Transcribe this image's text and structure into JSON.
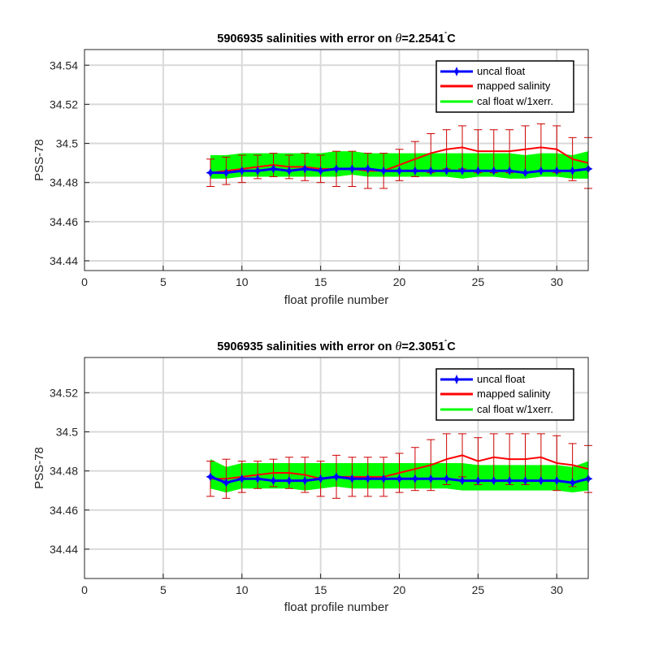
{
  "chart_data": [
    {
      "type": "line",
      "title": "5906935 salinities with error on θ=2.2541˚C",
      "title_parts": {
        "prefix": "5906935 salinities with error on ",
        "symbol": "θ",
        "value": "=2.2541",
        "degree": "˚",
        "unit": "C"
      },
      "xlabel": "float profile number",
      "ylabel": "PSS-78",
      "xlim": [
        0,
        32
      ],
      "ylim": [
        34.435,
        34.548
      ],
      "xticks": [
        0,
        5,
        10,
        15,
        20,
        25,
        30
      ],
      "xtick_labels": [
        "0",
        "5",
        "10",
        "15",
        "20",
        "25",
        "30"
      ],
      "yticks": [
        34.44,
        34.46,
        34.48,
        34.5,
        34.52,
        34.54
      ],
      "ytick_labels": [
        "34.44",
        "34.46",
        "34.48",
        "34.5",
        "34.52",
        "34.54"
      ],
      "grid": true,
      "legend_position": "top-right",
      "legend": [
        "uncal float",
        "mapped salinity",
        "cal float w/1xerr."
      ],
      "x": [
        8,
        9,
        10,
        11,
        12,
        13,
        14,
        15,
        16,
        17,
        18,
        19,
        20,
        21,
        22,
        23,
        24,
        25,
        26,
        27,
        28,
        29,
        30,
        31,
        32
      ],
      "series": [
        {
          "name": "uncal float",
          "color": "#0000ff",
          "values": [
            34.485,
            34.485,
            34.486,
            34.486,
            34.487,
            34.486,
            34.487,
            34.486,
            34.487,
            34.487,
            34.487,
            34.486,
            34.486,
            34.486,
            34.486,
            34.486,
            34.486,
            34.486,
            34.486,
            34.486,
            34.485,
            34.486,
            34.486,
            34.486,
            34.487
          ]
        },
        {
          "name": "mapped salinity",
          "color": "#ff0000",
          "values": [
            34.485,
            34.486,
            34.487,
            34.488,
            34.489,
            34.488,
            34.488,
            34.487,
            34.487,
            34.487,
            34.486,
            34.486,
            34.489,
            34.492,
            34.495,
            34.497,
            34.498,
            34.496,
            34.496,
            34.496,
            34.497,
            34.498,
            34.497,
            34.492,
            34.49
          ]
        },
        {
          "name": "mapped salinity error",
          "color": "#cc0000",
          "err": [
            0.007,
            0.007,
            0.007,
            0.006,
            0.006,
            0.006,
            0.007,
            0.007,
            0.009,
            0.009,
            0.009,
            0.009,
            0.008,
            0.009,
            0.01,
            0.01,
            0.011,
            0.011,
            0.011,
            0.011,
            0.012,
            0.012,
            0.012,
            0.011,
            0.013
          ]
        },
        {
          "name": "cal float w/1xerr.",
          "color": "#00ff00",
          "upper": [
            34.494,
            34.494,
            34.495,
            34.495,
            34.495,
            34.495,
            34.495,
            34.495,
            34.496,
            34.496,
            34.495,
            34.495,
            34.495,
            34.495,
            34.495,
            34.495,
            34.495,
            34.495,
            34.495,
            34.495,
            34.494,
            34.495,
            34.495,
            34.494,
            34.496
          ],
          "lower": [
            34.482,
            34.482,
            34.483,
            34.483,
            34.483,
            34.483,
            34.483,
            34.483,
            34.483,
            34.484,
            34.483,
            34.483,
            34.483,
            34.483,
            34.483,
            34.483,
            34.482,
            34.483,
            34.483,
            34.482,
            34.482,
            34.483,
            34.483,
            34.482,
            34.482
          ]
        }
      ]
    },
    {
      "type": "line",
      "title": "5906935 salinities with error on θ=2.3051˚C",
      "title_parts": {
        "prefix": "5906935 salinities with error on ",
        "symbol": "θ",
        "value": "=2.3051",
        "degree": "˚",
        "unit": "C"
      },
      "xlabel": "float profile number",
      "ylabel": "PSS-78",
      "xlim": [
        0,
        32
      ],
      "ylim": [
        34.425,
        34.538
      ],
      "xticks": [
        0,
        5,
        10,
        15,
        20,
        25,
        30
      ],
      "xtick_labels": [
        "0",
        "5",
        "10",
        "15",
        "20",
        "25",
        "30"
      ],
      "yticks": [
        34.44,
        34.46,
        34.48,
        34.5,
        34.52
      ],
      "ytick_labels": [
        "34.44",
        "34.46",
        "34.48",
        "34.5",
        "34.52"
      ],
      "grid": true,
      "legend_position": "top-right",
      "legend": [
        "uncal float",
        "mapped salinity",
        "cal float w/1xerr."
      ],
      "x": [
        8,
        9,
        10,
        11,
        12,
        13,
        14,
        15,
        16,
        17,
        18,
        19,
        20,
        21,
        22,
        23,
        24,
        25,
        26,
        27,
        28,
        29,
        30,
        31,
        32
      ],
      "series": [
        {
          "name": "uncal float",
          "color": "#0000ff",
          "values": [
            34.477,
            34.474,
            34.476,
            34.476,
            34.475,
            34.475,
            34.475,
            34.476,
            34.477,
            34.476,
            34.476,
            34.476,
            34.476,
            34.476,
            34.476,
            34.476,
            34.475,
            34.475,
            34.475,
            34.475,
            34.475,
            34.475,
            34.475,
            34.474,
            34.476
          ]
        },
        {
          "name": "mapped salinity",
          "color": "#ff0000",
          "values": [
            34.476,
            34.476,
            34.477,
            34.478,
            34.479,
            34.479,
            34.478,
            34.476,
            34.477,
            34.477,
            34.477,
            34.477,
            34.479,
            34.481,
            34.483,
            34.486,
            34.488,
            34.485,
            34.487,
            34.486,
            34.486,
            34.487,
            34.484,
            34.483,
            34.481
          ]
        },
        {
          "name": "mapped salinity error",
          "color": "#cc0000",
          "err": [
            0.009,
            0.01,
            0.008,
            0.007,
            0.007,
            0.008,
            0.009,
            0.009,
            0.011,
            0.01,
            0.01,
            0.01,
            0.01,
            0.011,
            0.013,
            0.013,
            0.011,
            0.012,
            0.012,
            0.013,
            0.013,
            0.012,
            0.014,
            0.011,
            0.012
          ]
        },
        {
          "name": "cal float w/1xerr.",
          "color": "#00ff00",
          "upper": [
            34.486,
            34.482,
            34.484,
            34.484,
            34.484,
            34.484,
            34.484,
            34.484,
            34.484,
            34.484,
            34.484,
            34.484,
            34.484,
            34.484,
            34.484,
            34.484,
            34.484,
            34.483,
            34.483,
            34.483,
            34.483,
            34.483,
            34.483,
            34.482,
            34.485
          ],
          "lower": [
            34.471,
            34.469,
            34.471,
            34.471,
            34.471,
            34.471,
            34.47,
            34.471,
            34.472,
            34.471,
            34.471,
            34.471,
            34.471,
            34.471,
            34.471,
            34.471,
            34.47,
            34.47,
            34.47,
            34.47,
            34.47,
            34.47,
            34.47,
            34.469,
            34.47
          ]
        }
      ]
    }
  ]
}
